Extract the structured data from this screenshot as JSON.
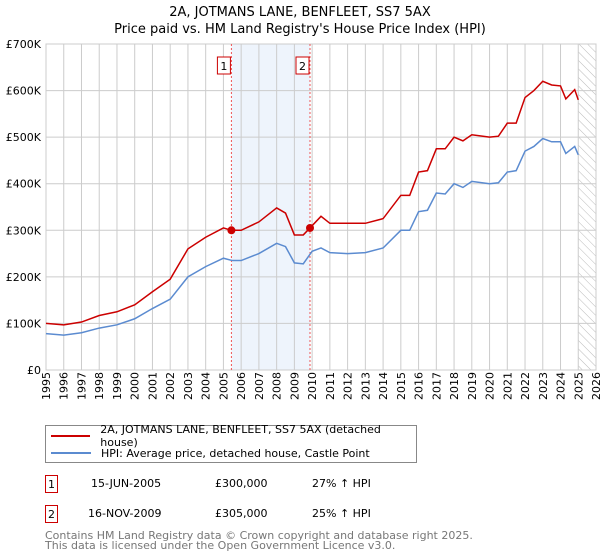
{
  "chart_data": {
    "type": "line",
    "title": "2A, JOTMANS LANE, BENFLEET, SS7 5AX",
    "subtitle": "Price paid vs. HM Land Registry's House Price Index (HPI)",
    "xlim": [
      1995,
      2026
    ],
    "ylim": [
      0,
      700000
    ],
    "y_ticks": [
      0,
      100000,
      200000,
      300000,
      400000,
      500000,
      600000,
      700000
    ],
    "y_tick_labels": [
      "£0",
      "£100K",
      "£200K",
      "£300K",
      "£400K",
      "£500K",
      "£600K",
      "£700K"
    ],
    "x_ticks": [
      "1995",
      "1996",
      "1997",
      "1998",
      "1999",
      "2000",
      "2001",
      "2002",
      "2003",
      "2004",
      "2005",
      "2006",
      "2007",
      "2008",
      "2009",
      "2010",
      "2011",
      "2012",
      "2013",
      "2014",
      "2015",
      "2016",
      "2017",
      "2018",
      "2019",
      "2020",
      "2021",
      "2022",
      "2023",
      "2024",
      "2025",
      "2026"
    ],
    "grid": true,
    "shaded_range": [
      2005.45,
      2009.88
    ],
    "forecast_hatch_from": 2025.0,
    "series": [
      {
        "name": "2A, JOTMANS LANE, BENFLEET, SS7 5AX (detached house)",
        "color": "#cc0000",
        "x": [
          1995,
          1996,
          1997,
          1998,
          1999,
          2000,
          2001,
          2002,
          2003,
          2004,
          2005,
          2005.45,
          2006,
          2007,
          2008,
          2008.5,
          2009,
          2009.5,
          2009.88,
          2010.5,
          2011,
          2012,
          2013,
          2014,
          2015,
          2015.5,
          2016,
          2016.5,
          2017,
          2017.5,
          2018,
          2018.5,
          2019,
          2020,
          2020.5,
          2021,
          2021.5,
          2022,
          2022.5,
          2023,
          2023.5,
          2024,
          2024.3,
          2024.8,
          2025
        ],
        "y": [
          100000,
          97000,
          103000,
          117000,
          125000,
          140000,
          168000,
          195000,
          260000,
          285000,
          305000,
          300000,
          300000,
          318000,
          348000,
          337000,
          290000,
          290000,
          305000,
          330000,
          315000,
          315000,
          315000,
          325000,
          375000,
          375000,
          425000,
          428000,
          475000,
          475000,
          500000,
          492000,
          505000,
          500000,
          502000,
          530000,
          530000,
          585000,
          600000,
          620000,
          612000,
          610000,
          582000,
          602000,
          580000
        ]
      },
      {
        "name": "HPI: Average price, detached house, Castle Point",
        "color": "#5b8bd0",
        "x": [
          1995,
          1996,
          1997,
          1998,
          1999,
          2000,
          2001,
          2002,
          2003,
          2004,
          2005,
          2005.5,
          2006,
          2007,
          2008,
          2008.5,
          2009,
          2009.5,
          2010,
          2010.5,
          2011,
          2012,
          2013,
          2014,
          2015,
          2015.5,
          2016,
          2016.5,
          2017,
          2017.5,
          2018,
          2018.5,
          2019,
          2020,
          2020.5,
          2021,
          2021.5,
          2022,
          2022.5,
          2023,
          2023.5,
          2024,
          2024.3,
          2024.8,
          2025
        ],
        "y": [
          78000,
          75000,
          80000,
          90000,
          97000,
          110000,
          132000,
          152000,
          200000,
          222000,
          240000,
          235000,
          235000,
          250000,
          272000,
          265000,
          230000,
          228000,
          255000,
          262000,
          252000,
          250000,
          252000,
          262000,
          300000,
          300000,
          340000,
          343000,
          380000,
          378000,
          400000,
          392000,
          405000,
          400000,
          402000,
          425000,
          428000,
          470000,
          480000,
          497000,
          490000,
          490000,
          465000,
          480000,
          462000
        ]
      }
    ],
    "sales": [
      {
        "label": "1",
        "x": 2005.45,
        "y": 300000,
        "date": "15-JUN-2005",
        "price": "£300,000",
        "hpi": "27% ↑ HPI"
      },
      {
        "label": "2",
        "x": 2009.88,
        "y": 305000,
        "date": "16-NOV-2009",
        "price": "£305,000",
        "hpi": "25% ↑ HPI"
      }
    ]
  },
  "footer": {
    "line1": "Contains HM Land Registry data © Crown copyright and database right 2025.",
    "line2": "This data is licensed under the Open Government Licence v3.0."
  }
}
